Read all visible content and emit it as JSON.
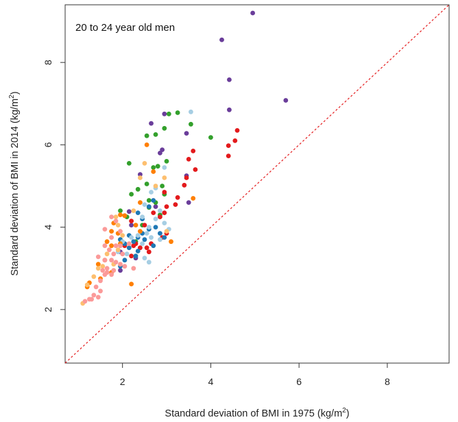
{
  "chart_data": {
    "type": "scatter",
    "title": "20 to 24 year old men",
    "xlabel": {
      "text": "Standard deviation of BMI in 1975 (kg/m",
      "sup": "2",
      "close": ")"
    },
    "ylabel": {
      "text": "Standard deviation of BMI in 2014 (kg/m",
      "sup": "2",
      "close": ")"
    },
    "xlim": [
      0.7,
      9.4
    ],
    "ylim": [
      0.7,
      9.4
    ],
    "xticks": [
      2,
      4,
      6,
      8
    ],
    "yticks": [
      2,
      4,
      6,
      8
    ],
    "xtick_labels": [
      "2",
      "4",
      "6",
      "8"
    ],
    "ytick_labels": [
      "2",
      "4",
      "6",
      "8"
    ],
    "grid": false,
    "reference_line": {
      "type": "identity",
      "style": "dotted",
      "color": "#e41a1c"
    },
    "series": [
      {
        "color": "#6a3d9a",
        "points": [
          [
            4.95,
            9.2
          ],
          [
            4.25,
            8.55
          ],
          [
            4.42,
            7.58
          ],
          [
            5.7,
            7.08
          ],
          [
            4.42,
            6.85
          ],
          [
            2.95,
            6.75
          ],
          [
            2.65,
            6.52
          ],
          [
            3.45,
            6.28
          ],
          [
            2.9,
            5.88
          ],
          [
            2.85,
            5.8
          ],
          [
            2.4,
            5.28
          ],
          [
            3.45,
            5.25
          ],
          [
            3.5,
            4.6
          ],
          [
            2.75,
            4.5
          ],
          [
            2.15,
            4.38
          ],
          [
            2.05,
            4.28
          ],
          [
            2.2,
            4.05
          ],
          [
            1.95,
            3.4
          ],
          [
            2.3,
            3.25
          ],
          [
            1.95,
            2.95
          ]
        ]
      },
      {
        "color": "#33a02c",
        "points": [
          [
            3.05,
            6.75
          ],
          [
            3.25,
            6.78
          ],
          [
            2.75,
            6.25
          ],
          [
            2.95,
            6.4
          ],
          [
            3.55,
            6.5
          ],
          [
            4.0,
            6.18
          ],
          [
            2.55,
            6.22
          ],
          [
            3.0,
            5.6
          ],
          [
            2.15,
            5.55
          ],
          [
            2.7,
            5.45
          ],
          [
            2.8,
            5.48
          ],
          [
            2.55,
            5.05
          ],
          [
            2.9,
            5.0
          ],
          [
            2.35,
            4.92
          ],
          [
            2.95,
            4.8
          ],
          [
            2.2,
            4.8
          ],
          [
            2.6,
            4.65
          ],
          [
            2.75,
            4.6
          ],
          [
            2.6,
            4.48
          ],
          [
            1.95,
            4.4
          ],
          [
            2.1,
            4.25
          ],
          [
            2.85,
            4.3
          ],
          [
            2.45,
            4.05
          ],
          [
            1.95,
            3.7
          ],
          [
            2.3,
            3.65
          ]
        ]
      },
      {
        "color": "#e31a1c",
        "points": [
          [
            4.6,
            6.35
          ],
          [
            3.6,
            5.85
          ],
          [
            4.55,
            6.1
          ],
          [
            4.4,
            5.98
          ],
          [
            4.4,
            5.73
          ],
          [
            3.5,
            5.65
          ],
          [
            3.65,
            5.4
          ],
          [
            3.45,
            5.2
          ],
          [
            3.4,
            5.02
          ],
          [
            2.95,
            4.85
          ],
          [
            3.25,
            4.72
          ],
          [
            3.0,
            4.5
          ],
          [
            2.7,
            4.35
          ],
          [
            2.85,
            4.25
          ],
          [
            2.95,
            4.35
          ],
          [
            2.2,
            4.15
          ],
          [
            2.5,
            4.05
          ],
          [
            3.2,
            4.55
          ],
          [
            3.0,
            3.85
          ],
          [
            2.65,
            3.6
          ],
          [
            2.4,
            3.5
          ],
          [
            2.6,
            3.4
          ],
          [
            2.2,
            3.3
          ],
          [
            2.3,
            3.6
          ],
          [
            2.55,
            3.5
          ],
          [
            2.9,
            3.75
          ],
          [
            2.25,
            3.55
          ],
          [
            2.05,
            3.55
          ]
        ]
      },
      {
        "color": "#1f78b4",
        "points": [
          [
            2.7,
            4.65
          ],
          [
            2.6,
            4.5
          ],
          [
            2.35,
            4.35
          ],
          [
            2.45,
            4.2
          ],
          [
            2.75,
            4.0
          ],
          [
            2.6,
            3.95
          ],
          [
            2.45,
            3.85
          ],
          [
            2.15,
            3.8
          ],
          [
            2.35,
            3.75
          ],
          [
            2.5,
            3.7
          ],
          [
            2.85,
            3.85
          ],
          [
            2.95,
            3.75
          ],
          [
            2.25,
            3.65
          ],
          [
            2.05,
            3.6
          ],
          [
            1.95,
            3.7
          ],
          [
            2.15,
            3.5
          ],
          [
            2.35,
            3.42
          ],
          [
            2.7,
            3.55
          ],
          [
            2.3,
            3.3
          ],
          [
            2.05,
            3.2
          ],
          [
            1.95,
            3.05
          ]
        ]
      },
      {
        "color": "#a6cee3",
        "points": [
          [
            3.55,
            6.8
          ],
          [
            2.95,
            5.45
          ],
          [
            2.75,
            4.95
          ],
          [
            2.65,
            4.85
          ],
          [
            2.5,
            4.55
          ],
          [
            2.85,
            4.4
          ],
          [
            2.75,
            4.2
          ],
          [
            2.95,
            4.1
          ],
          [
            3.05,
            3.95
          ],
          [
            2.6,
            4.0
          ],
          [
            2.45,
            4.25
          ],
          [
            2.3,
            4.05
          ],
          [
            2.55,
            3.85
          ],
          [
            2.35,
            3.8
          ],
          [
            2.65,
            3.75
          ],
          [
            2.85,
            3.7
          ],
          [
            2.2,
            3.75
          ],
          [
            2.45,
            3.6
          ],
          [
            2.0,
            3.65
          ],
          [
            1.95,
            3.55
          ],
          [
            2.1,
            3.35
          ],
          [
            2.5,
            3.25
          ],
          [
            2.6,
            3.15
          ],
          [
            1.9,
            3.4
          ]
        ]
      },
      {
        "color": "#ff7f00",
        "points": [
          [
            2.55,
            6.0
          ],
          [
            2.7,
            5.35
          ],
          [
            1.95,
            4.3
          ],
          [
            2.05,
            4.28
          ],
          [
            2.3,
            4.05
          ],
          [
            2.4,
            3.9
          ],
          [
            1.8,
            4.1
          ],
          [
            1.75,
            3.9
          ],
          [
            1.9,
            3.85
          ],
          [
            1.65,
            3.65
          ],
          [
            1.95,
            3.6
          ],
          [
            1.75,
            3.55
          ],
          [
            3.1,
            3.65
          ],
          [
            1.45,
            3.1
          ],
          [
            1.75,
            2.9
          ],
          [
            1.5,
            2.75
          ],
          [
            1.25,
            2.65
          ],
          [
            1.2,
            2.55
          ],
          [
            2.2,
            2.62
          ],
          [
            3.6,
            4.7
          ],
          [
            2.4,
            4.6
          ],
          [
            1.6,
            3.2
          ]
        ]
      },
      {
        "color": "#fdbf6f",
        "points": [
          [
            2.95,
            5.2
          ],
          [
            2.5,
            5.55
          ],
          [
            2.75,
            5.0
          ],
          [
            2.4,
            5.2
          ],
          [
            2.25,
            4.4
          ],
          [
            1.85,
            4.25
          ],
          [
            2.0,
            3.8
          ],
          [
            1.9,
            3.45
          ],
          [
            1.65,
            3.35
          ],
          [
            1.8,
            3.1
          ],
          [
            1.55,
            3.05
          ],
          [
            1.45,
            3.0
          ],
          [
            1.35,
            2.8
          ],
          [
            1.2,
            2.6
          ],
          [
            1.1,
            2.15
          ],
          [
            3.0,
            3.9
          ],
          [
            1.9,
            4.05
          ]
        ]
      },
      {
        "color": "#fb9a99",
        "points": [
          [
            1.75,
            4.25
          ],
          [
            1.85,
            4.15
          ],
          [
            1.6,
            3.95
          ],
          [
            1.95,
            3.9
          ],
          [
            1.75,
            3.75
          ],
          [
            1.85,
            3.55
          ],
          [
            1.6,
            3.55
          ],
          [
            1.7,
            3.45
          ],
          [
            1.8,
            3.35
          ],
          [
            1.45,
            3.28
          ],
          [
            1.6,
            3.2
          ],
          [
            1.75,
            3.2
          ],
          [
            1.85,
            3.15
          ],
          [
            1.95,
            3.1
          ],
          [
            2.05,
            3.05
          ],
          [
            1.65,
            3.0
          ],
          [
            1.8,
            2.95
          ],
          [
            1.55,
            2.95
          ],
          [
            1.65,
            2.9
          ],
          [
            1.75,
            2.85
          ],
          [
            1.6,
            2.85
          ],
          [
            1.5,
            2.7
          ],
          [
            1.4,
            2.55
          ],
          [
            1.5,
            2.45
          ],
          [
            1.35,
            2.35
          ],
          [
            1.25,
            2.25
          ],
          [
            1.3,
            2.25
          ],
          [
            1.45,
            2.3
          ],
          [
            1.15,
            2.2
          ],
          [
            2.15,
            3.6
          ],
          [
            2.0,
            3.35
          ],
          [
            2.25,
            3.0
          ],
          [
            1.95,
            3.55
          ]
        ]
      }
    ]
  }
}
